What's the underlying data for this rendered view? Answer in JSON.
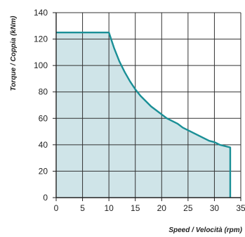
{
  "chart_data": {
    "type": "area",
    "title": "",
    "xlabel": "Speed / Velocità (rpm)",
    "ylabel": "Torque / Coppia (kNm)",
    "xlim": [
      0,
      35
    ],
    "ylim": [
      0,
      140
    ],
    "xticks": [
      0,
      5,
      10,
      15,
      20,
      25,
      30,
      35
    ],
    "yticks": [
      0,
      20,
      40,
      60,
      80,
      100,
      120,
      140
    ],
    "grid": true,
    "series": [
      {
        "x": [
          0,
          10,
          11,
          12,
          13,
          14,
          15,
          16,
          17,
          18,
          19,
          20,
          21,
          22,
          23,
          24,
          25,
          26,
          27,
          28,
          29,
          30,
          31,
          32,
          33,
          33
        ],
        "y": [
          125,
          125,
          113,
          103,
          95,
          88,
          82,
          77,
          73,
          69,
          66,
          63,
          60,
          58,
          56,
          53,
          51,
          49,
          47,
          45,
          43,
          42,
          40,
          39,
          38,
          0
        ]
      }
    ],
    "colors": {
      "line": "#1a8f96",
      "fill": "#cfe4e8",
      "grid": "#333333",
      "axis": "#222222"
    }
  }
}
